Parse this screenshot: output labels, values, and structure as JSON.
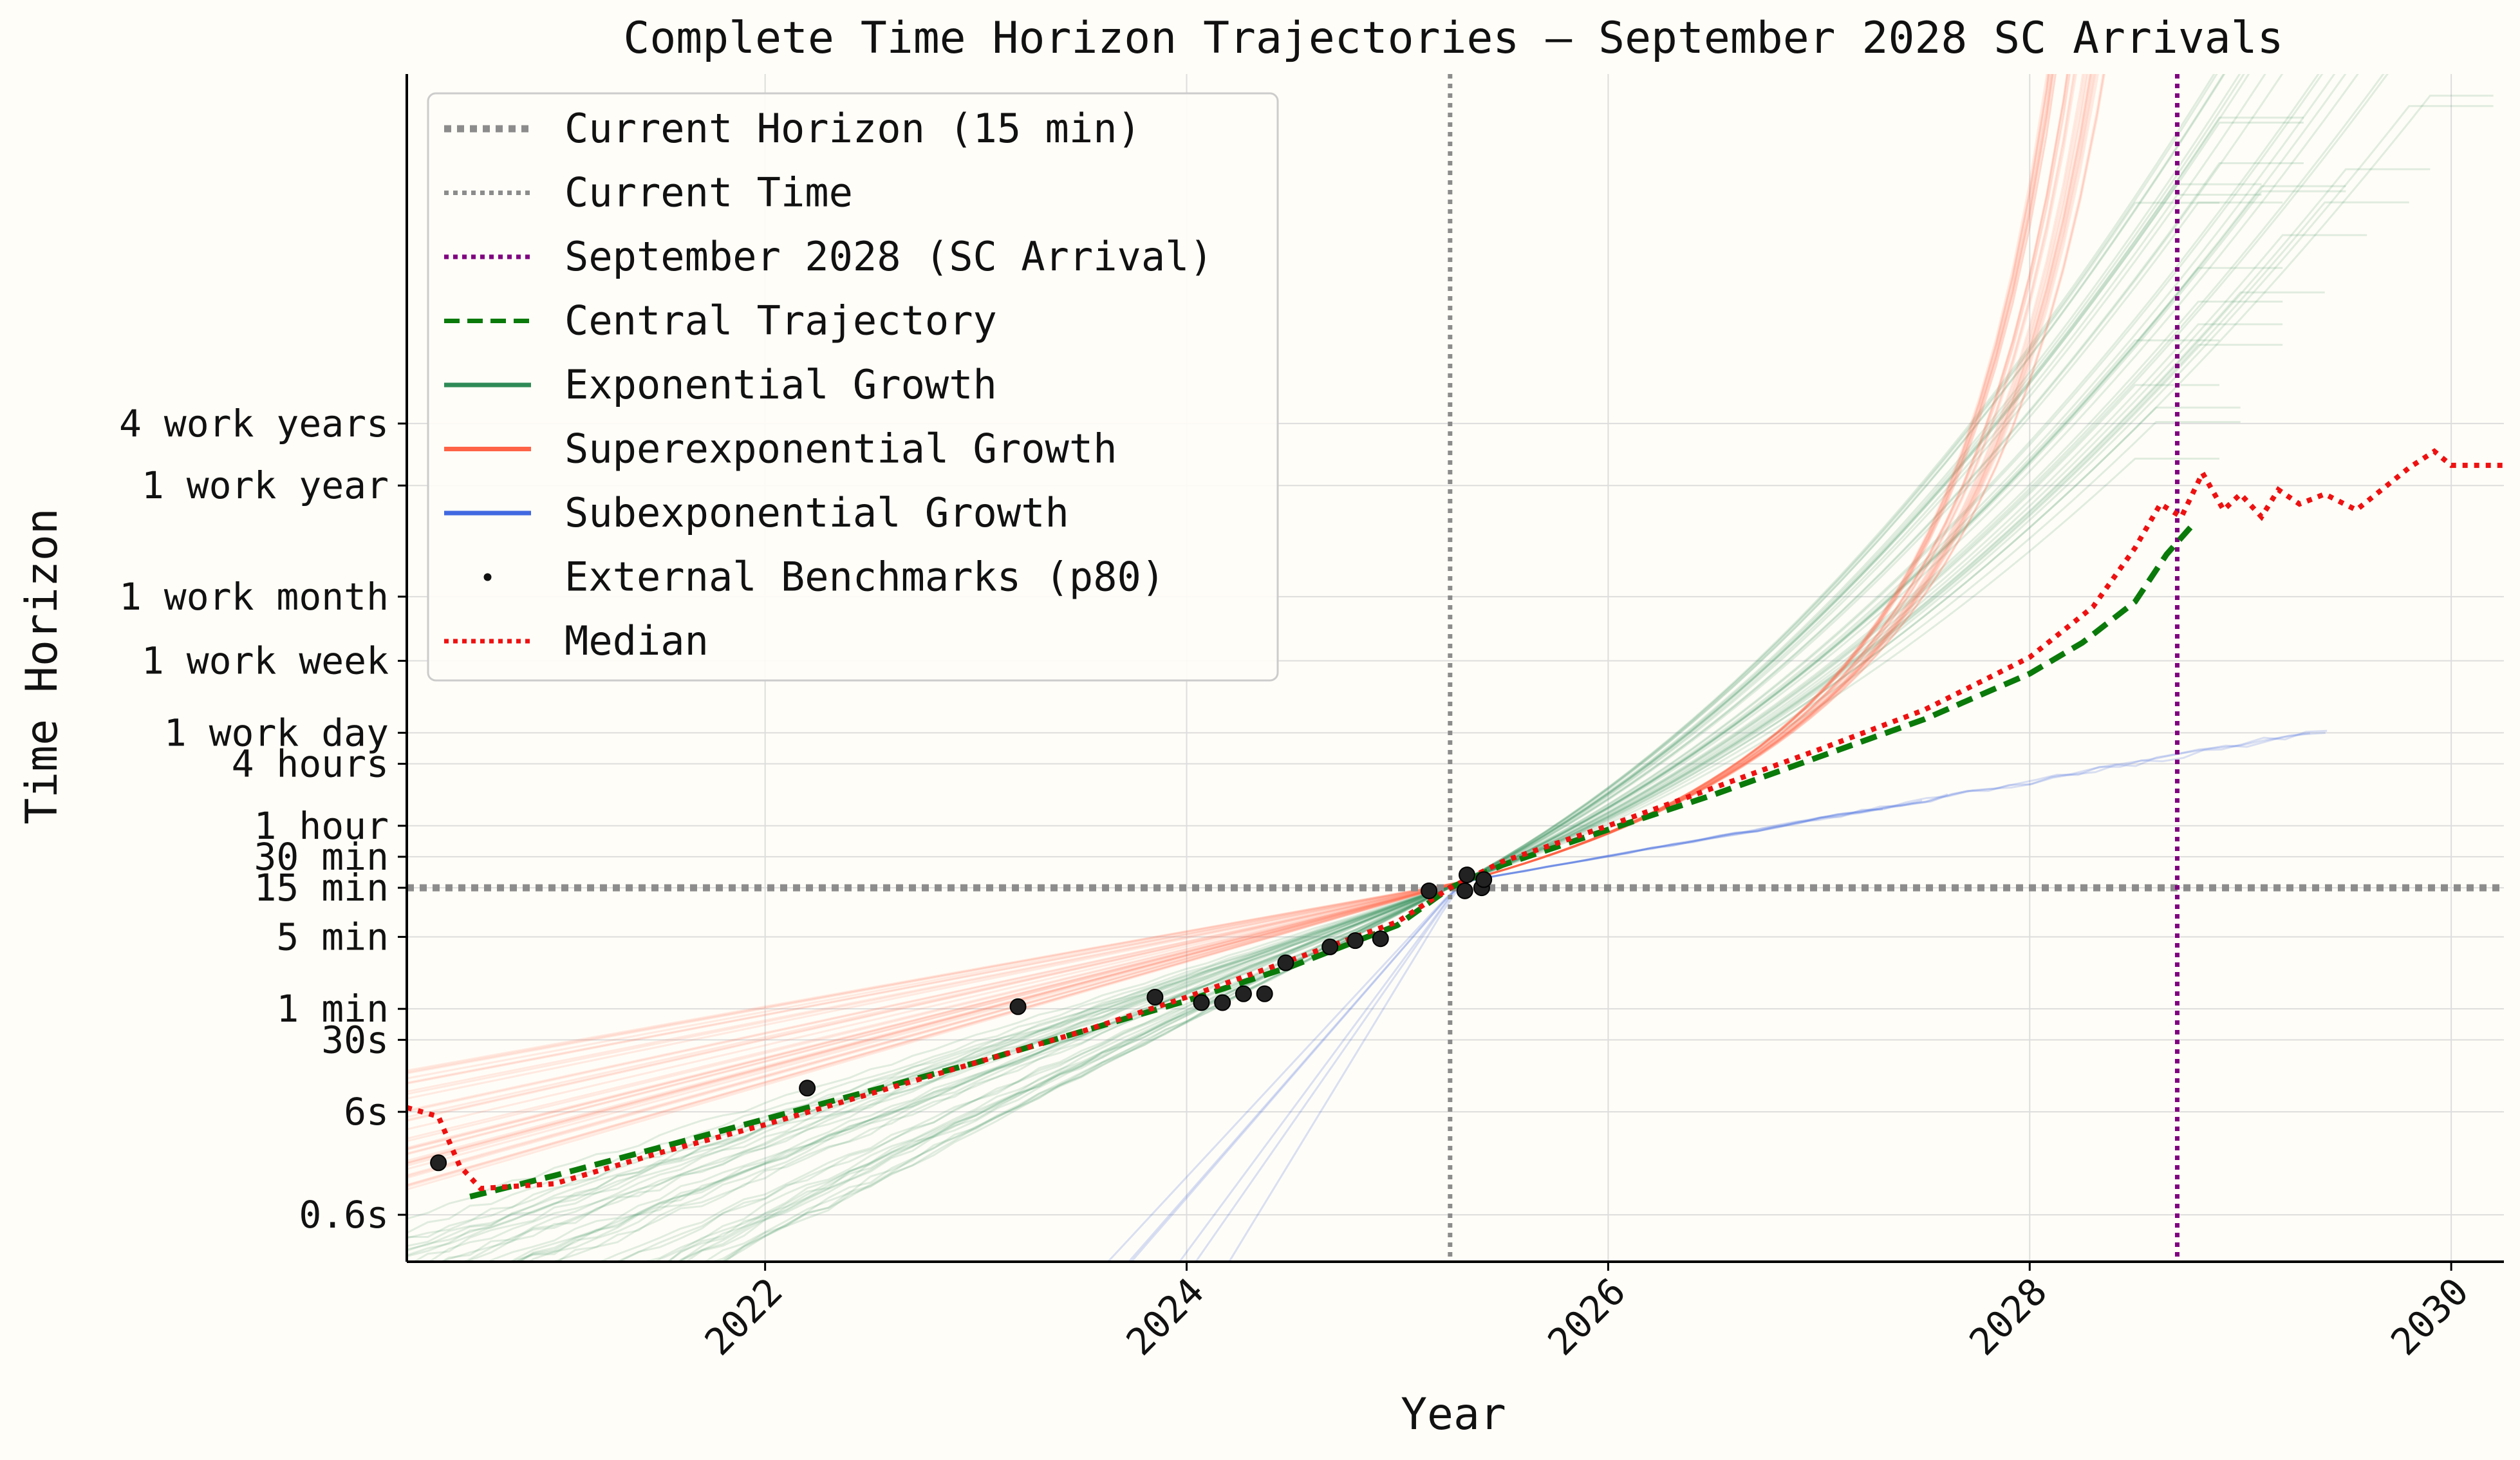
{
  "chart_data": {
    "type": "line",
    "title": "Complete Time Horizon Trajectories — September 2028 SC Arrivals",
    "xlabel": "Year",
    "ylabel": "Time Horizon",
    "xlim": [
      2020.3,
      2030.25
    ],
    "y_scale": "log",
    "y_unit_note": "values in minutes",
    "ylim": [
      0.0035,
      1200000000
    ],
    "grid": true,
    "x_ticks": [
      {
        "value": 2022,
        "label": "2022"
      },
      {
        "value": 2024,
        "label": "2024"
      },
      {
        "value": 2026,
        "label": "2026"
      },
      {
        "value": 2028,
        "label": "2028"
      },
      {
        "value": 2030,
        "label": "2030"
      }
    ],
    "y_ticks": [
      {
        "value": 0.01,
        "label": "0.6s"
      },
      {
        "value": 0.1,
        "label": "6s"
      },
      {
        "value": 0.5,
        "label": "30s"
      },
      {
        "value": 1,
        "label": "1 min"
      },
      {
        "value": 5,
        "label": "5 min"
      },
      {
        "value": 15,
        "label": "15 min"
      },
      {
        "value": 30,
        "label": "30 min"
      },
      {
        "value": 60,
        "label": "1 hour"
      },
      {
        "value": 240,
        "label": "4 hours"
      },
      {
        "value": 480,
        "label": "1 work day"
      },
      {
        "value": 2400,
        "label": "1 work week"
      },
      {
        "value": 10080,
        "label": "1 work month"
      },
      {
        "value": 120960,
        "label": "1 work year"
      },
      {
        "value": 483840,
        "label": "4 work years"
      }
    ],
    "reference_lines": {
      "current_horizon": {
        "label": "Current Horizon (15 min)",
        "y": 15,
        "color": "#8c8c8c"
      },
      "current_time": {
        "label": "Current Time",
        "x": 2025.25,
        "color": "#8c8c8c"
      },
      "sc_arrival": {
        "label": "September 2028 (SC Arrival)",
        "x": 2028.7,
        "color": "#800080"
      }
    },
    "legend": {
      "placement": "upper-left",
      "entries": [
        {
          "label": "Current Horizon (15 min)",
          "style": "dotted-thick",
          "color": "#8c8c8c"
        },
        {
          "label": "Current Time",
          "style": "dotted",
          "color": "#8c8c8c"
        },
        {
          "label": "September 2028 (SC Arrival)",
          "style": "dotted",
          "color": "#800080"
        },
        {
          "label": "Central Trajectory",
          "style": "dashed",
          "color": "#0a7a0a"
        },
        {
          "label": "Exponential Growth",
          "style": "solid",
          "color": "#2e8b57"
        },
        {
          "label": "Superexponential Growth",
          "style": "solid",
          "color": "#ff6347"
        },
        {
          "label": "Subexponential Growth",
          "style": "solid",
          "color": "#4169e1"
        },
        {
          "label": "External Benchmarks (p80)",
          "style": "marker",
          "color": "#111111"
        },
        {
          "label": "Median",
          "style": "dotted",
          "color": "#ee1111"
        }
      ]
    },
    "series": [
      {
        "name": "Central Trajectory",
        "color": "#0a7a0a",
        "x": [
          2020.6,
          2021.0,
          2021.5,
          2022.0,
          2022.5,
          2023.0,
          2023.5,
          2024.0,
          2024.5,
          2025.0,
          2025.25,
          2025.5,
          2026.0,
          2026.5,
          2027.0,
          2027.5,
          2028.0,
          2028.25,
          2028.5,
          2028.65,
          2028.78
        ],
        "y": [
          0.015,
          0.024,
          0.045,
          0.085,
          0.16,
          0.3,
          0.6,
          1.2,
          2.6,
          6.5,
          15,
          25,
          55,
          120,
          280,
          650,
          1800,
          3600,
          9000,
          26000,
          52000
        ]
      },
      {
        "name": "Median",
        "color": "#ee1111",
        "x": [
          2020.3,
          2020.45,
          2020.55,
          2020.65,
          2021.0,
          2021.5,
          2022.0,
          2022.5,
          2023.0,
          2023.5,
          2024.0,
          2024.5,
          2025.0,
          2025.25,
          2025.5,
          2026.0,
          2026.5,
          2027.0,
          2027.5,
          2028.0,
          2028.3,
          2028.5,
          2028.62,
          2028.72,
          2028.82,
          2028.92,
          2029.0,
          2029.1,
          2029.18,
          2029.28,
          2029.4,
          2029.55,
          2029.8,
          2029.92,
          2030.0,
          2030.25
        ],
        "y": [
          0.11,
          0.09,
          0.03,
          0.018,
          0.02,
          0.04,
          0.075,
          0.15,
          0.3,
          0.6,
          1.3,
          3.0,
          7.0,
          15,
          27,
          60,
          140,
          330,
          800,
          2600,
          8000,
          30000,
          80000,
          60000,
          160000,
          70000,
          100000,
          60000,
          110000,
          80000,
          100000,
          70000,
          180000,
          260000,
          190000,
          190000
        ]
      }
    ],
    "benchmarks": {
      "name": "External Benchmarks (p80)",
      "x": [
        2020.45,
        2022.2,
        2023.2,
        2023.85,
        2024.07,
        2024.17,
        2024.27,
        2024.37,
        2024.47,
        2024.68,
        2024.8,
        2024.92,
        2025.15,
        2025.32,
        2025.33,
        2025.4,
        2025.41
      ],
      "y": [
        0.032,
        0.17,
        1.05,
        1.3,
        1.15,
        1.15,
        1.4,
        1.4,
        2.8,
        4.0,
        4.6,
        4.8,
        14,
        14,
        20,
        15,
        18
      ]
    },
    "sample_trajectories": {
      "exponential": {
        "count": 40,
        "color": "#2e8b57",
        "opacity": 0.15
      },
      "superexponential": {
        "count": 35,
        "color": "#ff6347",
        "opacity": 0.13
      },
      "subexponential": {
        "count": 6,
        "color": "#4169e1",
        "opacity": 0.2
      }
    }
  }
}
